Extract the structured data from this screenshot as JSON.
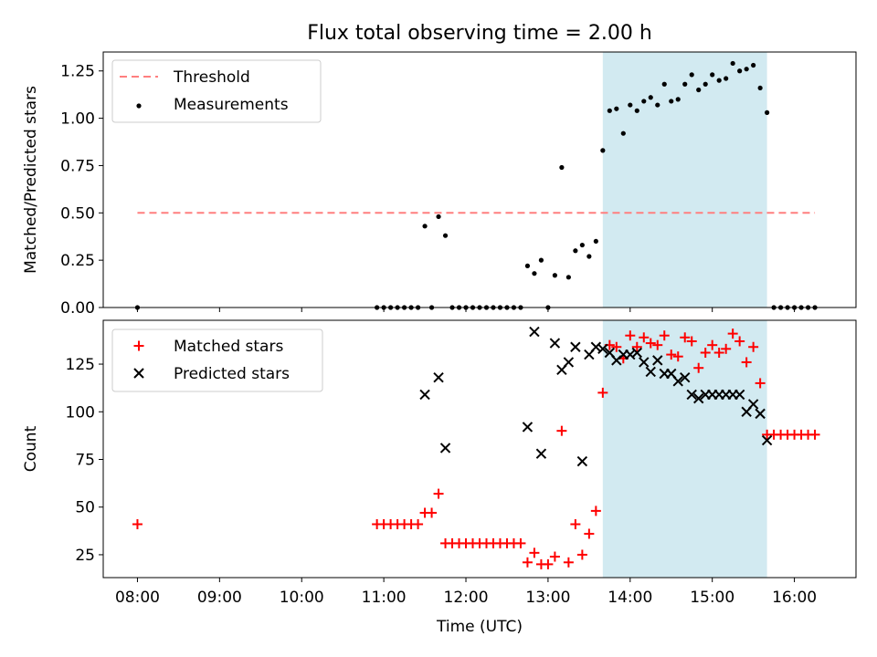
{
  "title": "Flux total observing time = 2.00 h",
  "colors": {
    "shade": "#add8e6",
    "threshold": "#ff7f7f",
    "matched": "#ff0000",
    "predicted": "#000000",
    "measurement": "#000000"
  },
  "chart_data": [
    {
      "type": "scatter",
      "panel": "top",
      "ylabel": "Matched/Predicted stars",
      "xlabel": "",
      "ylim": [
        0.0,
        1.35
      ],
      "yticks": [
        "0.00",
        "0.25",
        "0.50",
        "0.75",
        "1.00",
        "1.25"
      ],
      "ytick_values": [
        0.0,
        0.25,
        0.5,
        0.75,
        1.0,
        1.25
      ],
      "shaded_span": [
        "13:40",
        "15:40"
      ],
      "legend_placement": "upper-left",
      "threshold": {
        "name": "Threshold",
        "value": 0.5,
        "x_range": [
          "08:00",
          "16:15"
        ]
      },
      "series": [
        {
          "name": "Measurements",
          "x": [
            "08:00",
            "10:55",
            "11:00",
            "11:05",
            "11:10",
            "11:15",
            "11:20",
            "11:25",
            "11:30",
            "11:35",
            "11:40",
            "11:45",
            "11:50",
            "11:55",
            "12:00",
            "12:05",
            "12:10",
            "12:15",
            "12:20",
            "12:25",
            "12:30",
            "12:35",
            "12:40",
            "12:45",
            "12:50",
            "12:55",
            "13:00",
            "13:05",
            "13:10",
            "13:15",
            "13:20",
            "13:25",
            "13:30",
            "13:35",
            "13:40",
            "13:45",
            "13:50",
            "13:55",
            "14:00",
            "14:05",
            "14:10",
            "14:15",
            "14:20",
            "14:25",
            "14:30",
            "14:35",
            "14:40",
            "14:45",
            "14:50",
            "14:55",
            "15:00",
            "15:05",
            "15:10",
            "15:15",
            "15:20",
            "15:25",
            "15:30",
            "15:35",
            "15:40",
            "15:45",
            "15:50",
            "15:55",
            "16:00",
            "16:05",
            "16:10",
            "16:15"
          ],
          "y": [
            0.0,
            0.0,
            0.0,
            0.0,
            0.0,
            0.0,
            0.0,
            0.0,
            0.43,
            0.0,
            0.48,
            0.38,
            0.0,
            0.0,
            0.0,
            0.0,
            0.0,
            0.0,
            0.0,
            0.0,
            0.0,
            0.0,
            0.0,
            0.22,
            0.18,
            0.25,
            0.0,
            0.17,
            0.74,
            0.16,
            0.3,
            0.33,
            0.27,
            0.35,
            0.83,
            1.04,
            1.05,
            0.92,
            1.07,
            1.04,
            1.09,
            1.11,
            1.07,
            1.18,
            1.09,
            1.1,
            1.18,
            1.23,
            1.15,
            1.18,
            1.23,
            1.2,
            1.21,
            1.29,
            1.25,
            1.26,
            1.28,
            1.16,
            1.03,
            0.0,
            0.0,
            0.0,
            0.0,
            0.0,
            0.0,
            0.0
          ]
        }
      ]
    },
    {
      "type": "scatter",
      "panel": "bottom",
      "ylabel": "Count",
      "xlabel": "Time (UTC)",
      "ylim": [
        13,
        148
      ],
      "yticks": [
        "25",
        "50",
        "75",
        "100",
        "125"
      ],
      "ytick_values": [
        25,
        50,
        75,
        100,
        125
      ],
      "xlim": [
        "07:35",
        "16:45"
      ],
      "xticks": [
        "08:00",
        "09:00",
        "10:00",
        "11:00",
        "12:00",
        "13:00",
        "14:00",
        "15:00",
        "16:00"
      ],
      "shaded_span": [
        "13:40",
        "15:40"
      ],
      "legend_placement": "upper-left",
      "series": [
        {
          "name": "Matched stars",
          "marker": "plus",
          "x": [
            "08:00",
            "10:55",
            "11:00",
            "11:05",
            "11:10",
            "11:15",
            "11:20",
            "11:25",
            "11:30",
            "11:35",
            "11:40",
            "11:45",
            "11:50",
            "11:55",
            "12:00",
            "12:05",
            "12:10",
            "12:15",
            "12:20",
            "12:25",
            "12:30",
            "12:35",
            "12:40",
            "12:45",
            "12:50",
            "12:55",
            "13:00",
            "13:05",
            "13:10",
            "13:15",
            "13:20",
            "13:25",
            "13:30",
            "13:35",
            "13:40",
            "13:45",
            "13:50",
            "13:55",
            "14:00",
            "14:05",
            "14:10",
            "14:15",
            "14:20",
            "14:25",
            "14:30",
            "14:35",
            "14:40",
            "14:45",
            "14:50",
            "14:55",
            "15:00",
            "15:05",
            "15:10",
            "15:15",
            "15:20",
            "15:25",
            "15:30",
            "15:35",
            "15:40",
            "15:45",
            "15:50",
            "15:55",
            "16:00",
            "16:05",
            "16:10",
            "16:15"
          ],
          "y": [
            41,
            41,
            41,
            41,
            41,
            41,
            41,
            41,
            47,
            47,
            57,
            31,
            31,
            31,
            31,
            31,
            31,
            31,
            31,
            31,
            31,
            31,
            31,
            21,
            26,
            20,
            20,
            24,
            90,
            21,
            41,
            25,
            36,
            48,
            110,
            135,
            134,
            128,
            140,
            134,
            139,
            136,
            135,
            140,
            130,
            129,
            139,
            137,
            123,
            131,
            135,
            131,
            133,
            141,
            137,
            126,
            134,
            115,
            88,
            88,
            88,
            88,
            88,
            88,
            88,
            88
          ]
        },
        {
          "name": "Predicted stars",
          "marker": "x",
          "x": [
            "11:30",
            "11:40",
            "11:45",
            "12:45",
            "12:50",
            "12:55",
            "13:05",
            "13:10",
            "13:15",
            "13:20",
            "13:25",
            "13:30",
            "13:35",
            "13:40",
            "13:45",
            "13:50",
            "13:55",
            "14:00",
            "14:05",
            "14:10",
            "14:15",
            "14:20",
            "14:25",
            "14:30",
            "14:35",
            "14:40",
            "14:45",
            "14:50",
            "14:55",
            "15:00",
            "15:05",
            "15:10",
            "15:15",
            "15:20",
            "15:25",
            "15:30",
            "15:35",
            "15:40"
          ],
          "y": [
            109,
            118,
            81,
            92,
            142,
            78,
            136,
            122,
            126,
            134,
            74,
            130,
            134,
            133,
            131,
            127,
            130,
            130,
            131,
            126,
            121,
            127,
            120,
            120,
            116,
            118,
            109,
            107,
            109,
            109,
            109,
            109,
            109,
            109,
            100,
            104,
            99,
            85
          ]
        }
      ]
    }
  ]
}
